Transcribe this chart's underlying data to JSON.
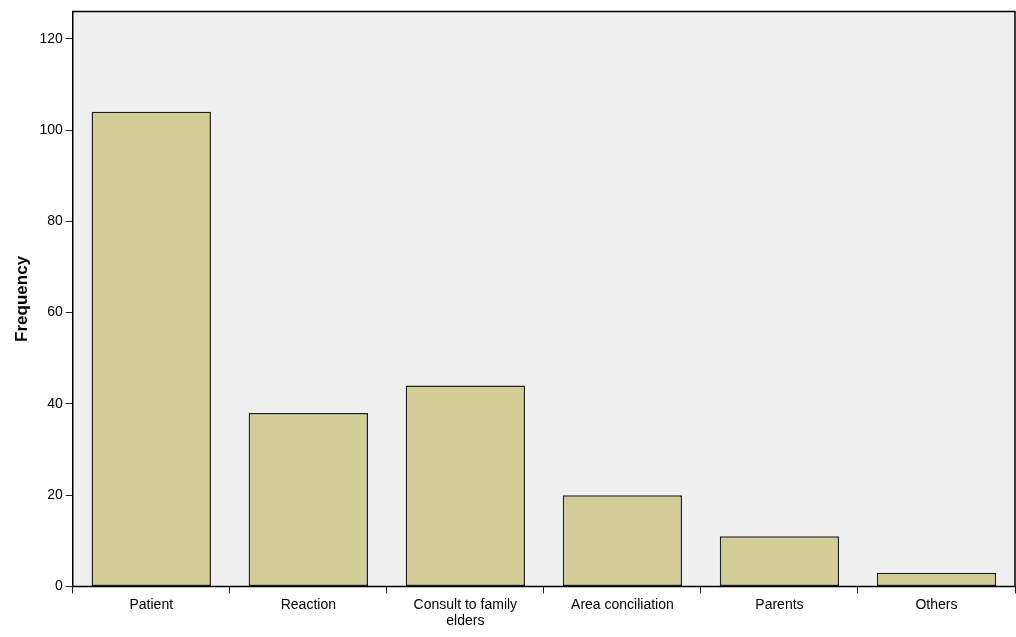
{
  "chart_data": {
    "type": "bar",
    "ylabel": "Frequency",
    "categories": [
      "Patient",
      "Reaction",
      "Consult to family elders",
      "Area conciliation",
      "Parents",
      "Others"
    ],
    "values": [
      104,
      38,
      44,
      20,
      11,
      3
    ],
    "color": "#d3ce97",
    "ylim": [
      0,
      126
    ],
    "yticks": [
      0,
      20,
      40,
      60,
      80,
      100,
      120
    ],
    "grid": false,
    "legend": false
  }
}
